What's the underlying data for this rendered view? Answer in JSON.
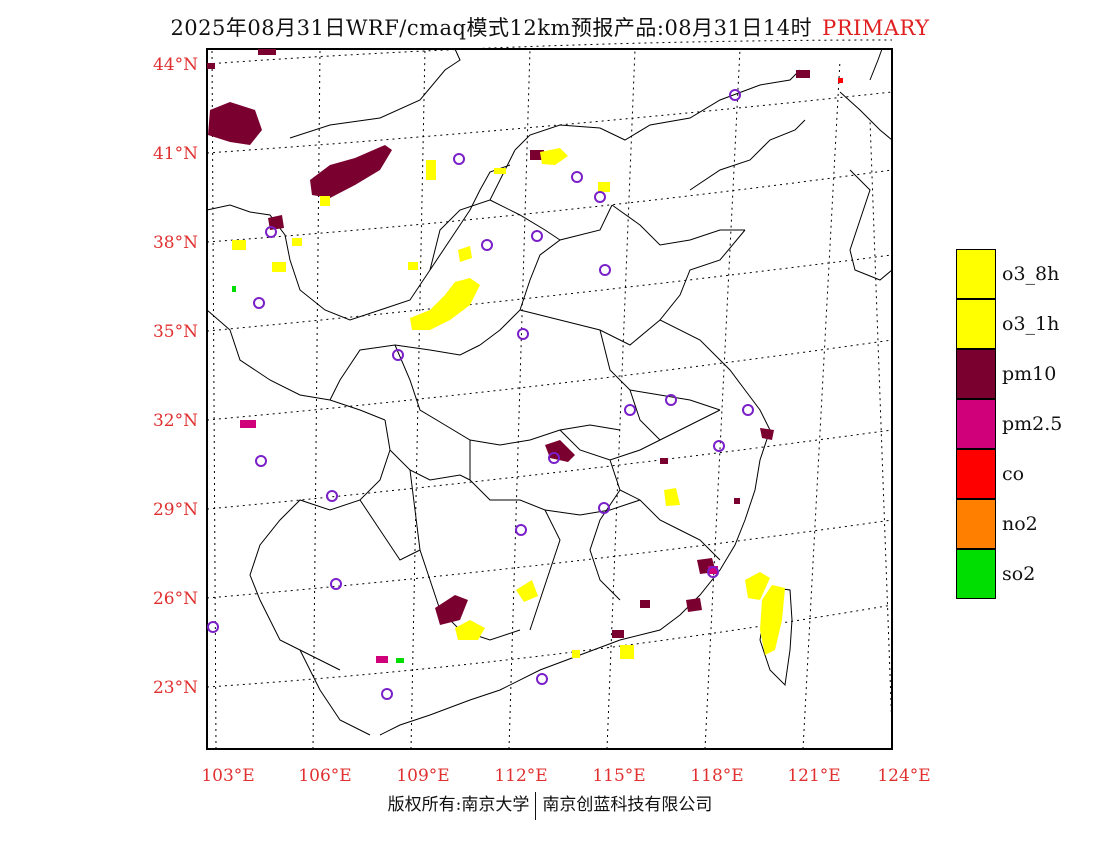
{
  "header": {
    "title": "2025年08月31日WRF/cmaq模式12km预报产品:08月31日14时",
    "tag": "PRIMARY"
  },
  "axes": {
    "lat_labels": [
      "44°N",
      "41°N",
      "38°N",
      "35°N",
      "32°N",
      "29°N",
      "26°N",
      "23°N"
    ],
    "lon_labels": [
      "103°E",
      "106°E",
      "109°E",
      "112°E",
      "115°E",
      "118°E",
      "121°E",
      "124°E"
    ]
  },
  "legend": {
    "items": [
      {
        "label": "o3_8h",
        "color": "#ffff00"
      },
      {
        "label": "o3_1h",
        "color": "#ffff00"
      },
      {
        "label": "pm10",
        "color": "#7a0030"
      },
      {
        "label": "pm2.5",
        "color": "#d0007a"
      },
      {
        "label": "co",
        "color": "#ff0000"
      },
      {
        "label": "no2",
        "color": "#ff8000"
      },
      {
        "label": "so2",
        "color": "#00dd00"
      }
    ]
  },
  "footer": {
    "left": "版权所有:南京大学",
    "right": "南京创蓝科技有限公司"
  },
  "colors": {
    "axis_label": "#e03030",
    "station_marker": "#7a20c8",
    "o3": "#ffff00",
    "pm10": "#7a0030",
    "pm25": "#d0007a",
    "so2": "#00dd00"
  }
}
